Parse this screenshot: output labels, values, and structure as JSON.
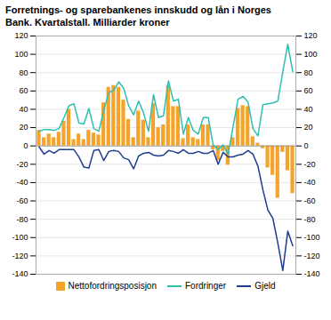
{
  "chart_data": {
    "type": "bar",
    "title": "Forretnings- og sparebankenes innskudd og lån i Norges",
    "subtitle": "Bank. Kvartalstall. Milliarder kroner",
    "categories": [
      null,
      null,
      null,
      null,
      null,
      null,
      null,
      null,
      null,
      null,
      null,
      null,
      null,
      null,
      null,
      null,
      null,
      null,
      null,
      null,
      null,
      null,
      null,
      null,
      null,
      null,
      null,
      null,
      null,
      null,
      null,
      null,
      null,
      null,
      null,
      null,
      null,
      null,
      null,
      null,
      null,
      null,
      null,
      null,
      null,
      null,
      null,
      null,
      null,
      null,
      null,
      null
    ],
    "series": [
      {
        "name": "Nettofordringsposisjon",
        "type": "bar",
        "color": "#f5a32a",
        "values": [
          17,
          9,
          13,
          9,
          15,
          27,
          40,
          7,
          13,
          7,
          17,
          14,
          12,
          47,
          64,
          66,
          64,
          50,
          29,
          9,
          38,
          28,
          9,
          46,
          20,
          23,
          66,
          43,
          43,
          8,
          23,
          9,
          7,
          23,
          23,
          -4,
          -16,
          -6,
          -21,
          9,
          41,
          44,
          43,
          10,
          3,
          -3,
          -24,
          -32,
          -57,
          -7,
          -27,
          -52
        ]
      },
      {
        "name": "Fordringer",
        "type": "line",
        "color": "#2dbfb0",
        "values": [
          16,
          18,
          18,
          17,
          19,
          31,
          44,
          46,
          25,
          24,
          41,
          19,
          16,
          39,
          58,
          61,
          70,
          63,
          44,
          34,
          49,
          36,
          16,
          56,
          31,
          33,
          71,
          49,
          51,
          13,
          31,
          17,
          13,
          31,
          31,
          1,
          -4,
          1,
          -9,
          21,
          51,
          54,
          48,
          19,
          11,
          45,
          46,
          47,
          49,
          81,
          111,
          81
        ]
      },
      {
        "name": "Gjeld",
        "type": "line",
        "color": "#1e3d8f",
        "values": [
          -1,
          -9,
          -5,
          -8,
          -4,
          -4,
          -4,
          -4,
          -12,
          -23,
          -24,
          -5,
          -4,
          -16,
          -6,
          -5,
          -6,
          -13,
          -15,
          -25,
          -11,
          -8,
          -7,
          -10,
          -11,
          -10,
          -5,
          -6,
          -8,
          -4,
          -8,
          -8,
          -6,
          -8,
          -8,
          -5,
          -20,
          -7,
          -12,
          -12,
          -10,
          -9,
          -5,
          -9,
          -22,
          -48,
          -70,
          -79,
          -106,
          -136,
          -93,
          -109
        ]
      }
    ],
    "ylim": [
      -140,
      120
    ],
    "yticks": [
      -140,
      -120,
      -100,
      -80,
      -60,
      -40,
      -20,
      0,
      20,
      40,
      60,
      80,
      100,
      120
    ],
    "grid": true,
    "legend": "bottom",
    "tick_labels": "y"
  }
}
